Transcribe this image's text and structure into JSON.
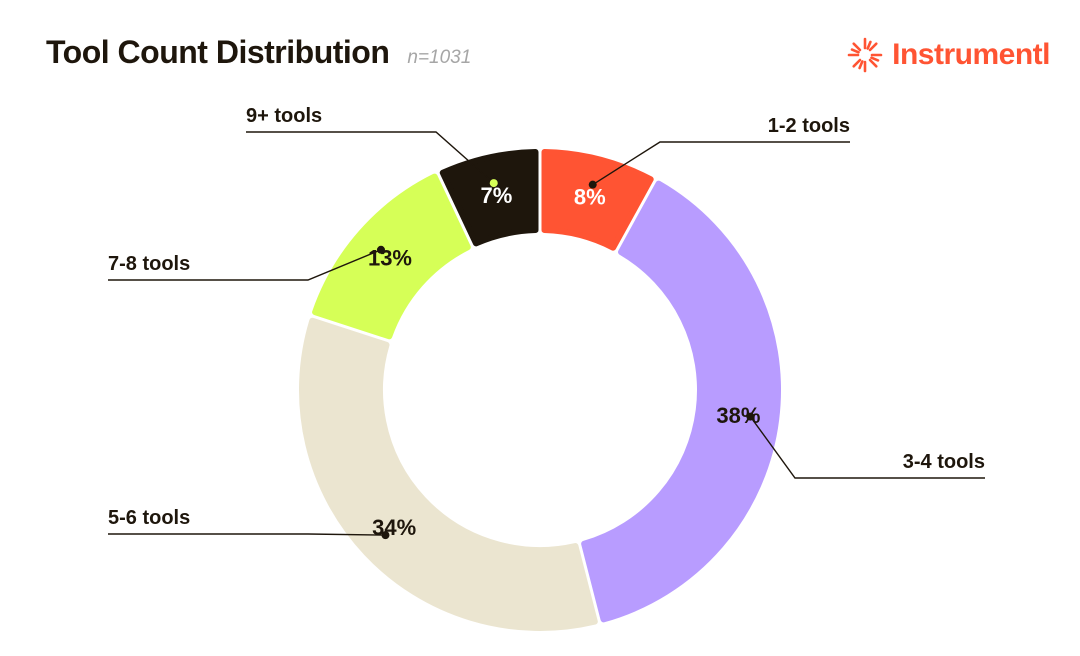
{
  "header": {
    "title": "Tool Count Distribution",
    "subtitle": "n=1031"
  },
  "brand": {
    "name": "Instrumentl",
    "icon": "sunburst-logo-icon",
    "color": "#ff5433"
  },
  "chart_data": {
    "type": "pie",
    "subtype": "donut",
    "title": "Tool Count Distribution",
    "slices": [
      {
        "label": "1-2 tools",
        "value": 8,
        "display": "8%",
        "color": "#ff5433",
        "text_color": "#ffffff"
      },
      {
        "label": "3-4 tools",
        "value": 38,
        "display": "38%",
        "color": "#b89cff",
        "text_color": "#1e160c"
      },
      {
        "label": "5-6 tools",
        "value": 34,
        "display": "34%",
        "color": "#ebe5d0",
        "text_color": "#1e160c"
      },
      {
        "label": "7-8 tools",
        "value": 13,
        "display": "13%",
        "color": "#d6ff57",
        "text_color": "#1e160c"
      },
      {
        "label": "9+ tools",
        "value": 7,
        "display": "7%",
        "color": "#1e160c",
        "text_color": "#ffffff"
      }
    ],
    "start": "top",
    "direction": "clockwise",
    "legend": "callout-labels"
  }
}
